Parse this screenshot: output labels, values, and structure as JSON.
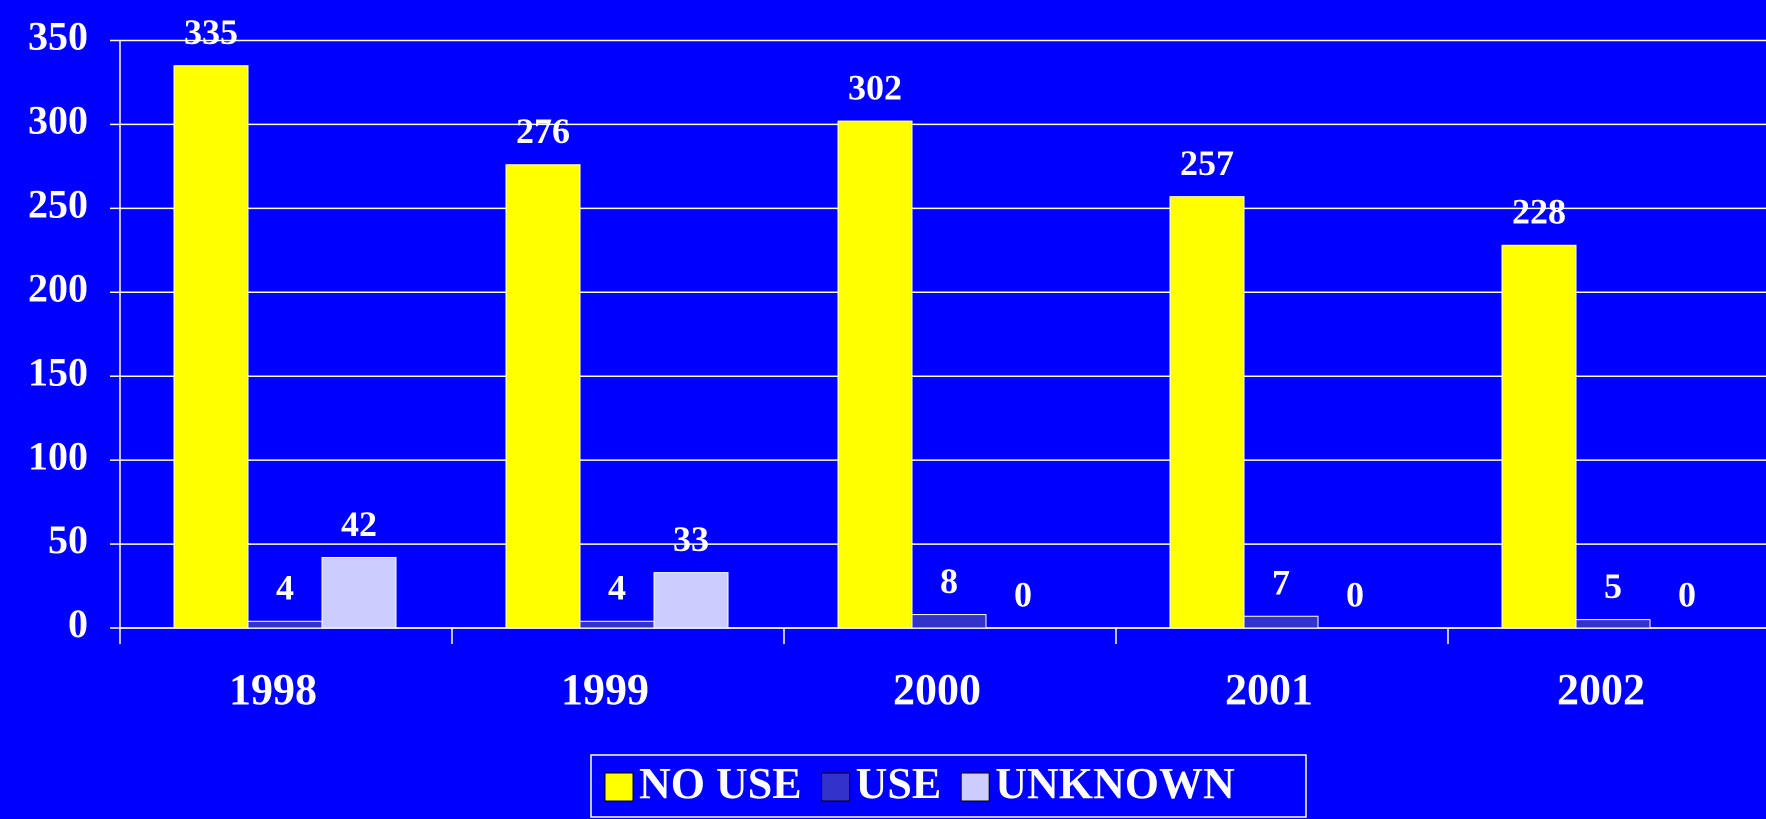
{
  "chart_data": {
    "type": "bar",
    "categories": [
      "1998",
      "1999",
      "2000",
      "2001",
      "2002"
    ],
    "series": [
      {
        "name": "NO USE",
        "color": "#ffff00",
        "values": [
          335,
          276,
          302,
          257,
          228
        ]
      },
      {
        "name": "USE",
        "color": "#3333cc",
        "values": [
          4,
          4,
          8,
          7,
          5
        ]
      },
      {
        "name": "UNKNOWN",
        "color": "#ccccff",
        "values": [
          42,
          33,
          0,
          0,
          0
        ]
      }
    ],
    "ylim": [
      0,
      350
    ],
    "yticks": [
      0,
      50,
      100,
      150,
      200,
      250,
      300,
      350
    ],
    "grid": true,
    "legend": "bottom"
  }
}
